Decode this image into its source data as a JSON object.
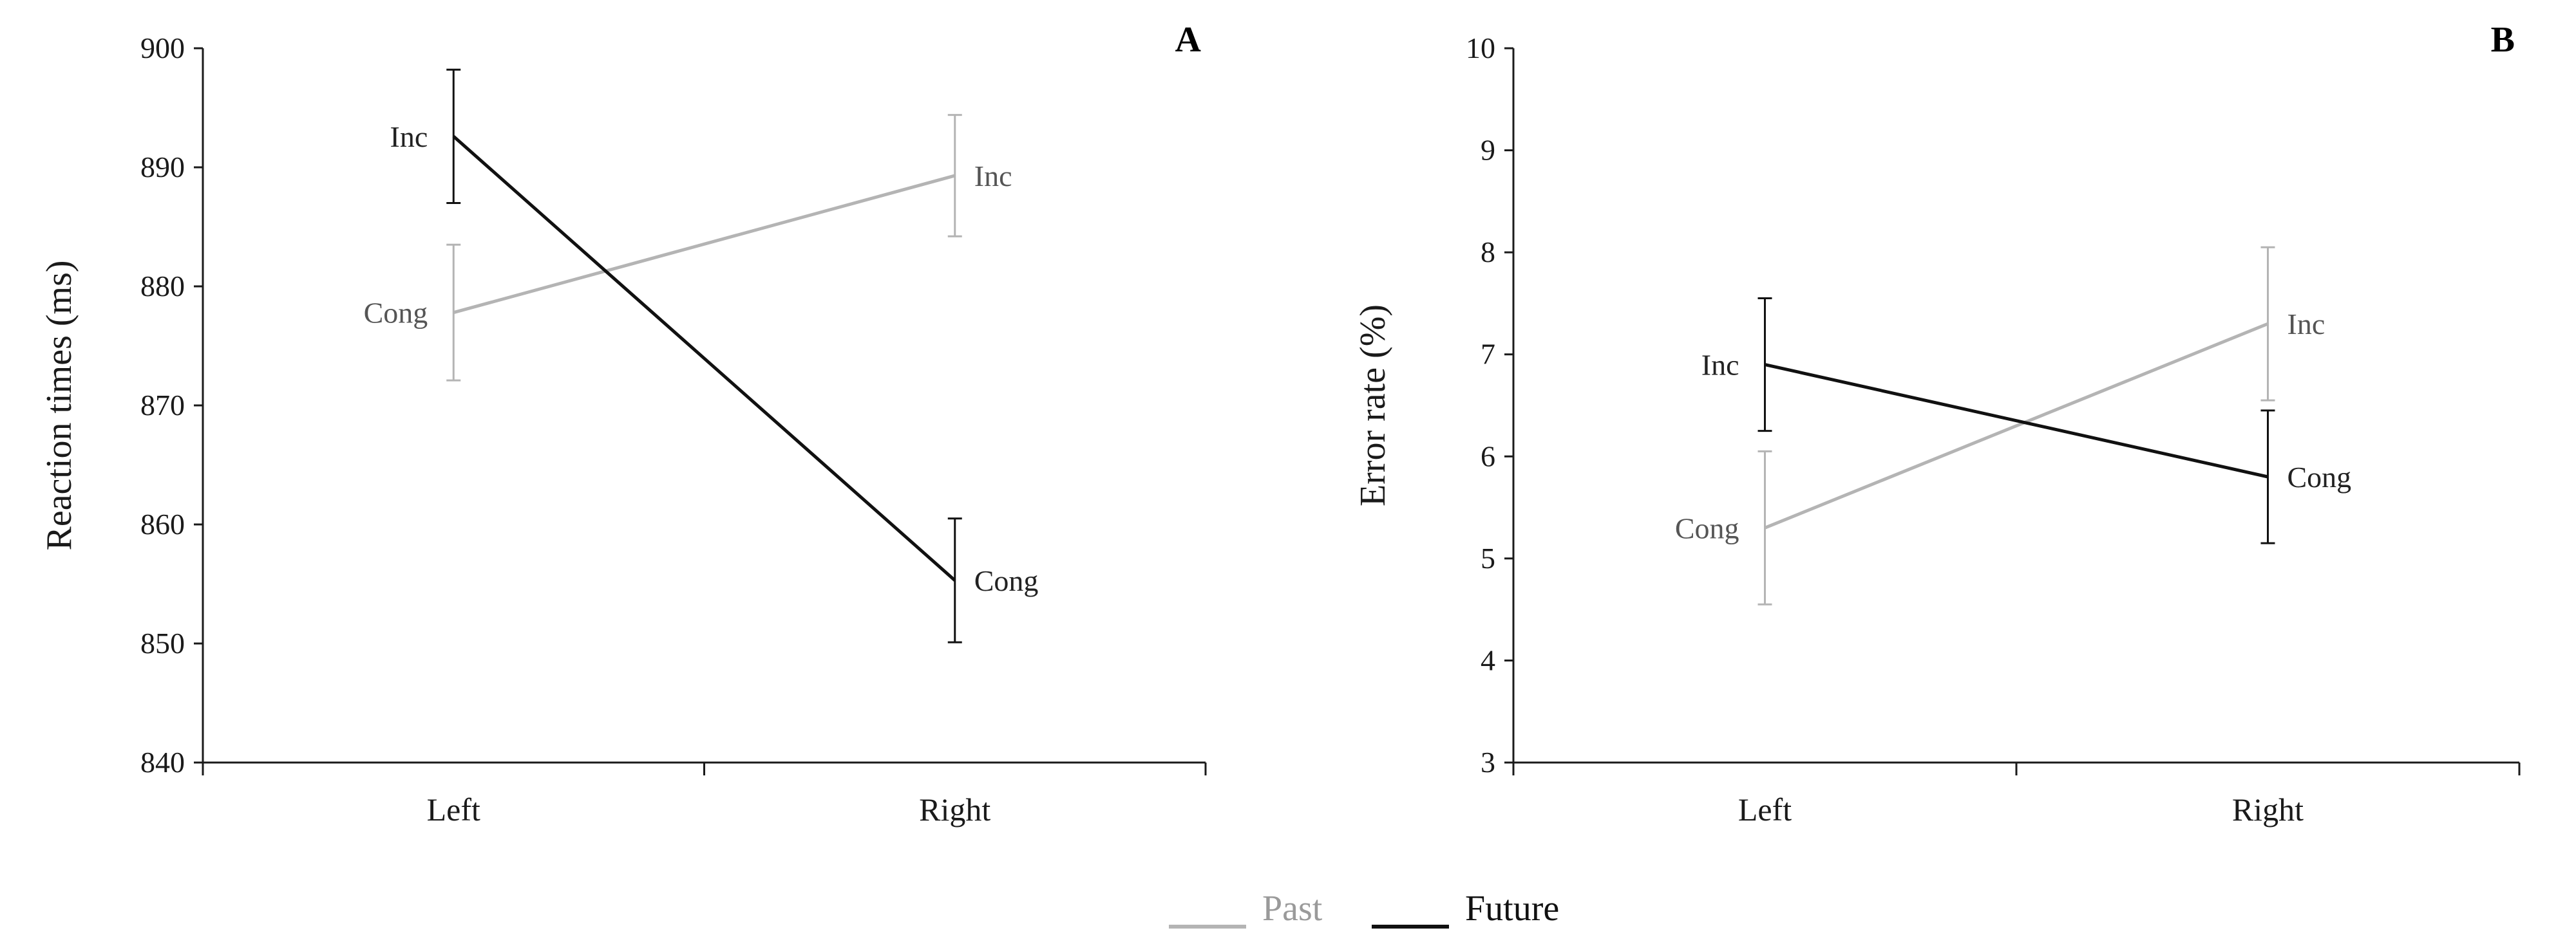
{
  "chart_data": [
    {
      "type": "line",
      "panel_label": "A",
      "title": "",
      "xlabel": "",
      "ylabel": "Reaction times (ms)",
      "categories": [
        "Left",
        "Right"
      ],
      "ylim": [
        840,
        900
      ],
      "yticks": [
        840,
        850,
        860,
        870,
        880,
        890,
        900
      ],
      "grid": false,
      "series": [
        {
          "name": "Past",
          "color": "#b4b4b4",
          "values": [
            877.8,
            889.3
          ],
          "error": [
            5.7,
            5.1
          ],
          "point_labels": [
            "Cong",
            "Inc"
          ],
          "label_side": [
            "left",
            "right"
          ]
        },
        {
          "name": "Future",
          "color": "#111111",
          "values": [
            892.6,
            855.3
          ],
          "error": [
            5.6,
            5.2
          ],
          "point_labels": [
            "Inc",
            "Cong"
          ],
          "label_side": [
            "left",
            "right"
          ]
        }
      ]
    },
    {
      "type": "line",
      "panel_label": "B",
      "title": "",
      "xlabel": "",
      "ylabel": "Error rate (%)",
      "categories": [
        "Left",
        "Right"
      ],
      "ylim": [
        3,
        10
      ],
      "yticks": [
        3,
        4,
        5,
        6,
        7,
        8,
        9,
        10
      ],
      "grid": false,
      "series": [
        {
          "name": "Past",
          "color": "#b4b4b4",
          "values": [
            5.3,
            7.3
          ],
          "error": [
            0.75,
            0.75
          ],
          "point_labels": [
            "Cong",
            "Inc"
          ],
          "label_side": [
            "left",
            "right"
          ]
        },
        {
          "name": "Future",
          "color": "#111111",
          "values": [
            6.9,
            5.8
          ],
          "error": [
            0.65,
            0.65
          ],
          "point_labels": [
            "Inc",
            "Cong"
          ],
          "label_side": [
            "left",
            "right"
          ]
        }
      ]
    }
  ],
  "legend": {
    "placement": "bottom-center",
    "items": [
      {
        "name": "Past",
        "color": "#b4b4b4"
      },
      {
        "name": "Future",
        "color": "#111111"
      }
    ]
  }
}
